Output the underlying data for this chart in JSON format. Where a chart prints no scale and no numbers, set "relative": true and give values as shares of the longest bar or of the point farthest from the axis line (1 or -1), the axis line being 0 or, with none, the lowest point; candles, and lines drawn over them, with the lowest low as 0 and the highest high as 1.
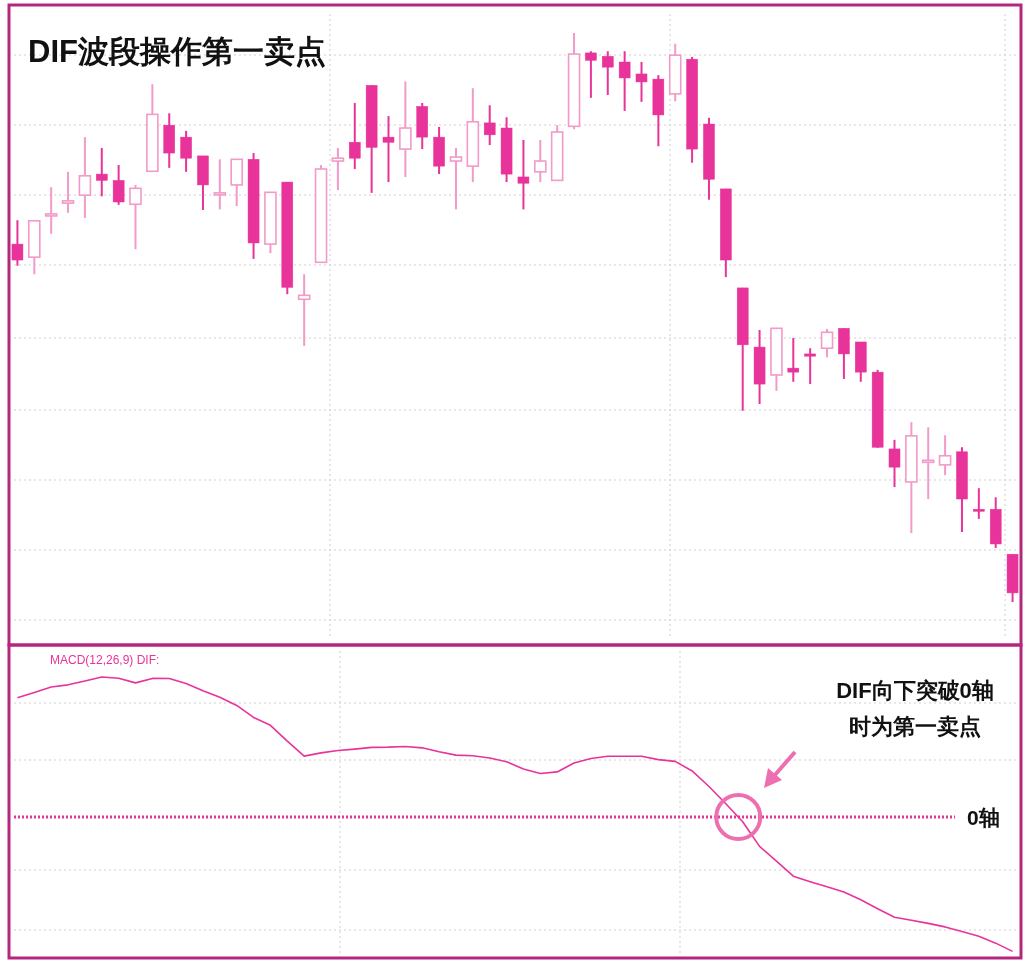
{
  "chart_data": [
    {
      "type": "candlestick",
      "title": "DIF波段操作第一卖点",
      "relative": true,
      "grid": true,
      "categories": [
        null,
        null,
        null,
        null,
        null,
        null,
        null,
        null,
        null,
        null,
        null,
        null,
        null,
        null,
        null,
        null,
        null,
        null,
        null,
        null,
        null,
        null,
        null,
        null,
        null,
        null,
        null,
        null,
        null,
        null,
        null,
        null,
        null,
        null,
        null,
        null,
        null,
        null,
        null,
        null,
        null,
        null,
        null,
        null,
        null,
        null,
        null,
        null,
        null,
        null,
        null,
        null,
        null,
        null,
        null,
        null,
        null,
        null,
        null,
        null
      ],
      "ohlc": [
        [
          0.629,
          0.671,
          0.591,
          0.601
        ],
        [
          0.606,
          0.67,
          0.576,
          0.67
        ],
        [
          0.68,
          0.729,
          0.647,
          0.682
        ],
        [
          0.701,
          0.756,
          0.684,
          0.705
        ],
        [
          0.715,
          0.817,
          0.675,
          0.749
        ],
        [
          0.752,
          0.798,
          0.713,
          0.741
        ],
        [
          0.741,
          0.768,
          0.698,
          0.703
        ],
        [
          0.699,
          0.733,
          0.62,
          0.727
        ],
        [
          0.757,
          0.91,
          0.757,
          0.857
        ],
        [
          0.838,
          0.859,
          0.763,
          0.789
        ],
        [
          0.817,
          0.828,
          0.756,
          0.78
        ],
        [
          0.784,
          0.784,
          0.689,
          0.733
        ],
        [
          0.717,
          0.778,
          0.69,
          0.719
        ],
        [
          0.733,
          0.778,
          0.696,
          0.778
        ],
        [
          0.778,
          0.789,
          0.603,
          0.631
        ],
        [
          0.629,
          0.72,
          0.613,
          0.72
        ],
        [
          0.738,
          0.738,
          0.541,
          0.553
        ],
        [
          0.532,
          0.576,
          0.45,
          0.539
        ],
        [
          0.597,
          0.768,
          0.597,
          0.761
        ],
        [
          0.775,
          0.798,
          0.724,
          0.78
        ],
        [
          0.808,
          0.877,
          0.761,
          0.78
        ],
        [
          0.908,
          0.908,
          0.719,
          0.799
        ],
        [
          0.817,
          0.854,
          0.738,
          0.808
        ],
        [
          0.796,
          0.915,
          0.747,
          0.833
        ],
        [
          0.871,
          0.877,
          0.796,
          0.817
        ],
        [
          0.817,
          0.835,
          0.752,
          0.766
        ],
        [
          0.775,
          0.798,
          0.69,
          0.782
        ],
        [
          0.766,
          0.903,
          0.738,
          0.844
        ],
        [
          0.842,
          0.873,
          0.803,
          0.821
        ],
        [
          0.833,
          0.852,
          0.738,
          0.752
        ],
        [
          0.747,
          0.812,
          0.69,
          0.736
        ],
        [
          0.756,
          0.812,
          0.738,
          0.775
        ],
        [
          0.741,
          0.838,
          0.741,
          0.826
        ],
        [
          0.836,
          1.0,
          0.831,
          0.963
        ],
        [
          0.965,
          0.968,
          0.886,
          0.952
        ],
        [
          0.959,
          0.968,
          0.891,
          0.94
        ],
        [
          0.949,
          0.968,
          0.863,
          0.921
        ],
        [
          0.928,
          0.949,
          0.879,
          0.914
        ],
        [
          0.919,
          0.926,
          0.801,
          0.856
        ],
        [
          0.893,
          0.981,
          0.88,
          0.961
        ],
        [
          0.954,
          0.958,
          0.772,
          0.796
        ],
        [
          0.84,
          0.851,
          0.707,
          0.743
        ],
        [
          0.726,
          0.726,
          0.571,
          0.601
        ],
        [
          0.552,
          0.552,
          0.336,
          0.452
        ],
        [
          0.448,
          0.478,
          0.348,
          0.383
        ],
        [
          0.399,
          0.481,
          0.371,
          0.481
        ],
        [
          0.411,
          0.464,
          0.387,
          0.404
        ],
        [
          0.436,
          0.446,
          0.383,
          0.432
        ],
        [
          0.446,
          0.48,
          0.43,
          0.474
        ],
        [
          0.481,
          0.481,
          0.392,
          0.436
        ],
        [
          0.457,
          0.457,
          0.387,
          0.404
        ],
        [
          0.404,
          0.408,
          0.271,
          0.272
        ],
        [
          0.269,
          0.285,
          0.202,
          0.237
        ],
        [
          0.211,
          0.316,
          0.121,
          0.292
        ],
        [
          0.248,
          0.307,
          0.181,
          0.249
        ],
        [
          0.241,
          0.293,
          0.223,
          0.257
        ],
        [
          0.264,
          0.272,
          0.123,
          0.181
        ],
        [
          0.163,
          0.2,
          0.146,
          0.16
        ],
        [
          0.163,
          0.184,
          0.095,
          0.102
        ],
        [
          0.084,
          0.084,
          0.0,
          0.016
        ]
      ],
      "colors": [
        "#e8339a",
        "#f29ac8",
        "#f29ac8",
        "#f29ac8",
        "#f29ac8",
        "#e8339a",
        "#e8339a",
        "#f29ac8",
        "#f29ac8",
        "#e8339a",
        "#e8339a",
        "#e8339a",
        "#f29ac8",
        "#f29ac8",
        "#e8339a",
        "#f29ac8",
        "#e8339a",
        "#f29ac8",
        "#f29ac8",
        "#f29ac8",
        "#e8339a",
        "#e8339a",
        "#e8339a",
        "#f29ac8",
        "#e8339a",
        "#e8339a",
        "#f29ac8",
        "#f29ac8",
        "#e8339a",
        "#e8339a",
        "#e8339a",
        "#f29ac8",
        "#f29ac8",
        "#f29ac8",
        "#e8339a",
        "#e8339a",
        "#e8339a",
        "#e8339a",
        "#e8339a",
        "#f29ac8",
        "#e8339a",
        "#e8339a",
        "#e8339a",
        "#e8339a",
        "#e8339a",
        "#f29ac8",
        "#e8339a",
        "#e8339a",
        "#f29ac8",
        "#e8339a",
        "#e8339a",
        "#e8339a",
        "#e8339a",
        "#f29ac8",
        "#f29ac8",
        "#f29ac8",
        "#e8339a",
        "#e8339a",
        "#e8339a",
        "#e8339a"
      ]
    },
    {
      "type": "line",
      "relative": true,
      "grid": true,
      "legend": "top left",
      "categories": [
        null,
        null,
        null,
        null,
        null,
        null,
        null,
        null,
        null,
        null,
        null,
        null,
        null,
        null,
        null,
        null,
        null,
        null,
        null,
        null,
        null,
        null,
        null,
        null,
        null,
        null,
        null,
        null,
        null,
        null,
        null,
        null,
        null,
        null,
        null,
        null,
        null,
        null,
        null,
        null,
        null,
        null,
        null,
        null,
        null,
        null,
        null,
        null,
        null,
        null,
        null,
        null,
        null,
        null,
        null,
        null,
        null,
        null,
        null,
        null
      ],
      "series": [
        {
          "name": "MACD(12,26,9) DIF:",
          "color": "#e8339a",
          "values": [
            0.852,
            0.889,
            0.928,
            0.944,
            0.972,
            1.0,
            0.991,
            0.958,
            0.99,
            0.989,
            0.954,
            0.902,
            0.855,
            0.797,
            0.711,
            0.655,
            0.542,
            0.435,
            0.458,
            0.475,
            0.485,
            0.497,
            0.499,
            0.504,
            0.494,
            0.466,
            0.442,
            0.437,
            0.422,
            0.395,
            0.343,
            0.311,
            0.322,
            0.386,
            0.418,
            0.434,
            0.434,
            0.434,
            0.41,
            0.397,
            0.329,
            0.218,
            0.095,
            -0.034,
            -0.21,
            -0.315,
            -0.423,
            -0.462,
            -0.499,
            -0.536,
            -0.591,
            -0.655,
            -0.716,
            -0.738,
            -0.76,
            -0.785,
            -0.818,
            -0.852,
            -0.901,
            -0.96
          ]
        }
      ],
      "ref_lines": [
        {
          "axis": "y",
          "value": 0,
          "label": "0轴",
          "color": "#e8339a",
          "line_style": "dotted"
        }
      ],
      "annotations": [
        "DIF向下突破0轴时为第一卖点"
      ]
    }
  ]
}
